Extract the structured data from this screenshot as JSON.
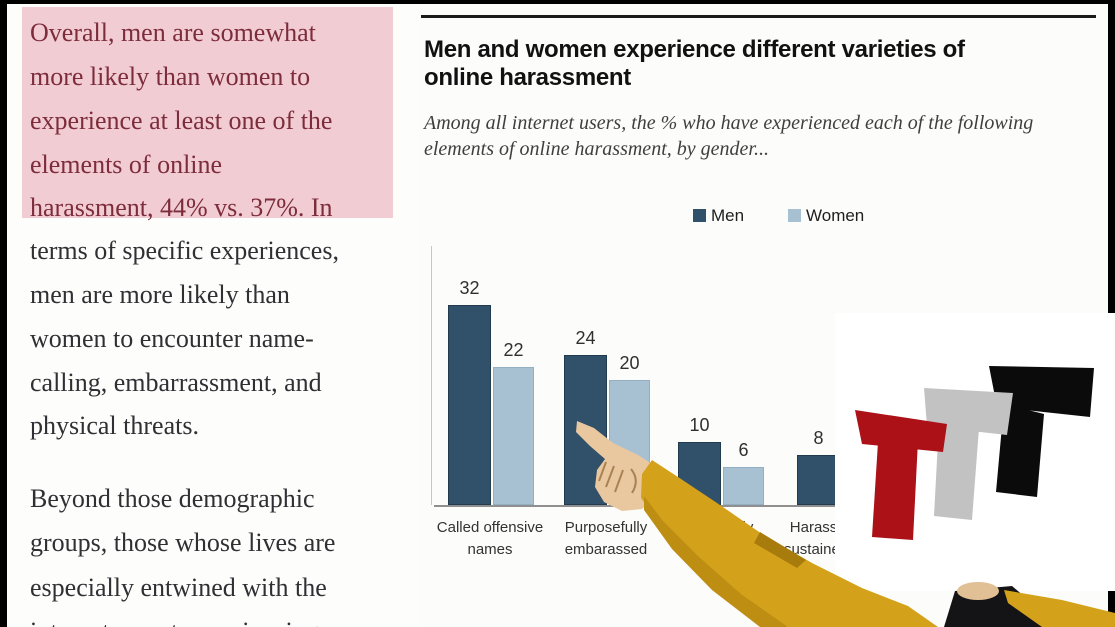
{
  "colors": {
    "highlight_bg": "#f2ccd3",
    "highlight_text": "#7c2c3b",
    "body_text": "#302f33",
    "frame_border": "#000000"
  },
  "article": {
    "highlighted_lines": [
      "Overall, men are somewhat",
      "more likely than women to",
      "experience at least one of the",
      "elements of online",
      "harassment, 44% vs. 37%. In"
    ],
    "body_lines": [
      "terms of specific experiences,",
      "men are more likely than",
      "women to encounter name-",
      "calling, embarrassment, and",
      "physical threats."
    ],
    "body2_lines": [
      "Beyond those demographic",
      "groups, those whose lives are",
      "especially entwined with the",
      "internet report experiencing"
    ]
  },
  "chart": {
    "title_line1": "Men and women experience different varieties of",
    "title_line2": "online harassment",
    "subtitle_line1": "Among all internet users, the % who have experienced each of the following",
    "subtitle_line2": "elements of online harassment, by gender...",
    "legend_men": "Men",
    "legend_women": "Women"
  },
  "chart_data": {
    "type": "bar",
    "title": "Men and women experience different varieties of online harassment",
    "subtitle": "Among all internet users, the % who have experienced each of the following elements of online harassment, by gender...",
    "categories": [
      "Called offensive names",
      "Purposefully embarassed",
      "Physically threatened",
      "Harassed for a sustained period"
    ],
    "series": [
      {
        "name": "Men",
        "color": "#31506a",
        "values": [
          32,
          24,
          10,
          8
        ]
      },
      {
        "name": "Women",
        "color": "#a7c1d3",
        "values": [
          22,
          20,
          6,
          null
        ]
      }
    ],
    "value_labels": true,
    "grid": false,
    "legend_position": "top",
    "ylim": [
      0,
      35
    ],
    "note": "Fourth Women bar and parts of last two category labels are hidden behind a logo/arm overlay"
  },
  "overlay": {
    "logo_text": "TTT",
    "logo_bg": "#ffffff",
    "logo_colors": {
      "t1": "#ab1117",
      "t2": "#c2c2c2",
      "t3": "#0b0b0b"
    },
    "character": {
      "sleeve": "#d4a21a",
      "sleeve_shade": "#bd8e12",
      "sleeve_crease": "#a87c0c",
      "skin": "#e9c8a0",
      "skin_shade": "#e2c096",
      "shirt": "#141416",
      "hand_line": "#a98253"
    }
  }
}
